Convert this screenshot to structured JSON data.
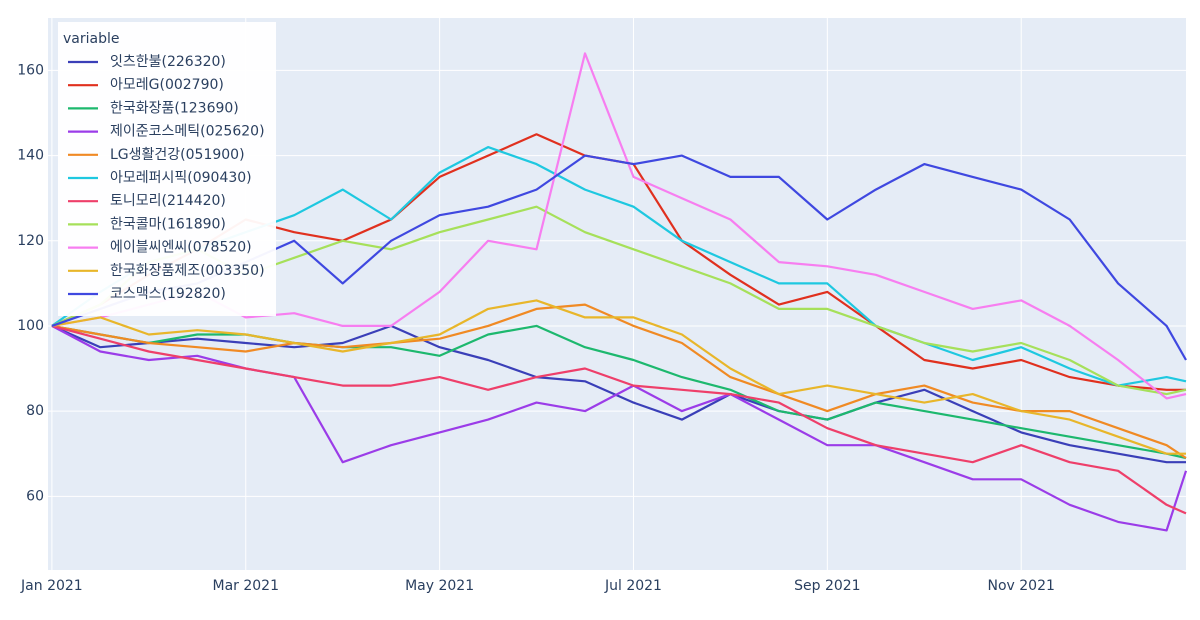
{
  "chart_data": {
    "type": "line",
    "legend_title": "variable",
    "legend_position": "top-left",
    "grid": true,
    "x": [
      0,
      0.5,
      1,
      1.5,
      2,
      2.5,
      3,
      3.5,
      4,
      4.5,
      5,
      5.5,
      6,
      6.5,
      7,
      7.5,
      8,
      8.5,
      9,
      9.5,
      10,
      10.5,
      11,
      11.5,
      11.7
    ],
    "xlim": [
      -0.04,
      11.7
    ],
    "xticks": [
      {
        "value": 0,
        "label": "Jan 2021"
      },
      {
        "value": 2,
        "label": "Mar 2021"
      },
      {
        "value": 4,
        "label": "May 2021"
      },
      {
        "value": 6,
        "label": "Jul 2021"
      },
      {
        "value": 8,
        "label": "Sep 2021"
      },
      {
        "value": 10,
        "label": "Nov 2021"
      }
    ],
    "ylim": [
      42.7,
      172.3
    ],
    "yticks": [
      60,
      80,
      100,
      120,
      140,
      160
    ],
    "series": [
      {
        "name": "잇츠한불(226320)",
        "color": "#3a3fb8",
        "values": [
          100,
          95,
          96,
          97,
          96,
          95,
          96,
          100,
          95,
          92,
          88,
          87,
          82,
          78,
          84,
          80,
          78,
          82,
          85,
          80,
          75,
          72,
          70,
          68,
          68
        ]
      },
      {
        "name": "아모레G(002790)",
        "color": "#e0301e",
        "values": [
          100,
          105,
          112,
          118,
          125,
          122,
          120,
          125,
          135,
          140,
          145,
          140,
          138,
          120,
          112,
          105,
          108,
          100,
          92,
          90,
          92,
          88,
          86,
          85,
          85
        ]
      },
      {
        "name": "한국화장품(123690)",
        "color": "#1db86e",
        "values": [
          100,
          98,
          96,
          98,
          98,
          96,
          95,
          95,
          93,
          98,
          100,
          95,
          92,
          88,
          85,
          80,
          78,
          82,
          80,
          78,
          76,
          74,
          72,
          70,
          69
        ]
      },
      {
        "name": "제이준코스메틱(025620)",
        "color": "#9b3ce8",
        "values": [
          100,
          94,
          92,
          93,
          90,
          88,
          68,
          72,
          75,
          78,
          82,
          80,
          86,
          80,
          84,
          78,
          72,
          72,
          68,
          64,
          64,
          58,
          54,
          52,
          66
        ]
      },
      {
        "name": "LG생활건강(051900)",
        "color": "#f08a24",
        "values": [
          100,
          98,
          96,
          95,
          94,
          96,
          95,
          96,
          97,
          100,
          104,
          105,
          100,
          96,
          88,
          84,
          80,
          84,
          86,
          82,
          80,
          80,
          76,
          72,
          69
        ]
      },
      {
        "name": "아모레퍼시픽(090430)",
        "color": "#1ec8e0",
        "values": [
          100,
          108,
          115,
          118,
          122,
          126,
          132,
          125,
          136,
          142,
          138,
          132,
          128,
          120,
          115,
          110,
          110,
          100,
          96,
          92,
          95,
          90,
          86,
          88,
          87
        ]
      },
      {
        "name": "토니모리(214420)",
        "color": "#ee3f6a",
        "values": [
          100,
          97,
          94,
          92,
          90,
          88,
          86,
          86,
          88,
          85,
          88,
          90,
          86,
          85,
          84,
          82,
          76,
          72,
          70,
          68,
          72,
          68,
          66,
          58,
          56
        ]
      },
      {
        "name": "한국콜마(161890)",
        "color": "#a6e05a",
        "values": [
          100,
          105,
          115,
          118,
          112,
          116,
          120,
          118,
          122,
          125,
          128,
          122,
          118,
          114,
          110,
          104,
          104,
          100,
          96,
          94,
          96,
          92,
          86,
          84,
          85
        ]
      },
      {
        "name": "에이블씨엔씨(078520)",
        "color": "#f77ef0",
        "values": [
          100,
          102,
          105,
          108,
          102,
          103,
          100,
          100,
          108,
          120,
          118,
          164,
          135,
          130,
          125,
          115,
          114,
          112,
          108,
          104,
          106,
          100,
          92,
          83,
          84
        ]
      },
      {
        "name": "한국화장품제조(003350)",
        "color": "#e8b62a",
        "values": [
          100,
          102,
          98,
          99,
          98,
          96,
          94,
          96,
          98,
          104,
          106,
          102,
          102,
          98,
          90,
          84,
          86,
          84,
          82,
          84,
          80,
          78,
          74,
          70,
          70
        ]
      },
      {
        "name": "코스맥스(192820)",
        "color": "#3f48e0",
        "values": [
          100,
          104,
          108,
          110,
          115,
          120,
          110,
          120,
          126,
          128,
          132,
          140,
          138,
          140,
          135,
          135,
          125,
          132,
          138,
          135,
          132,
          125,
          110,
          100,
          92
        ]
      }
    ]
  }
}
